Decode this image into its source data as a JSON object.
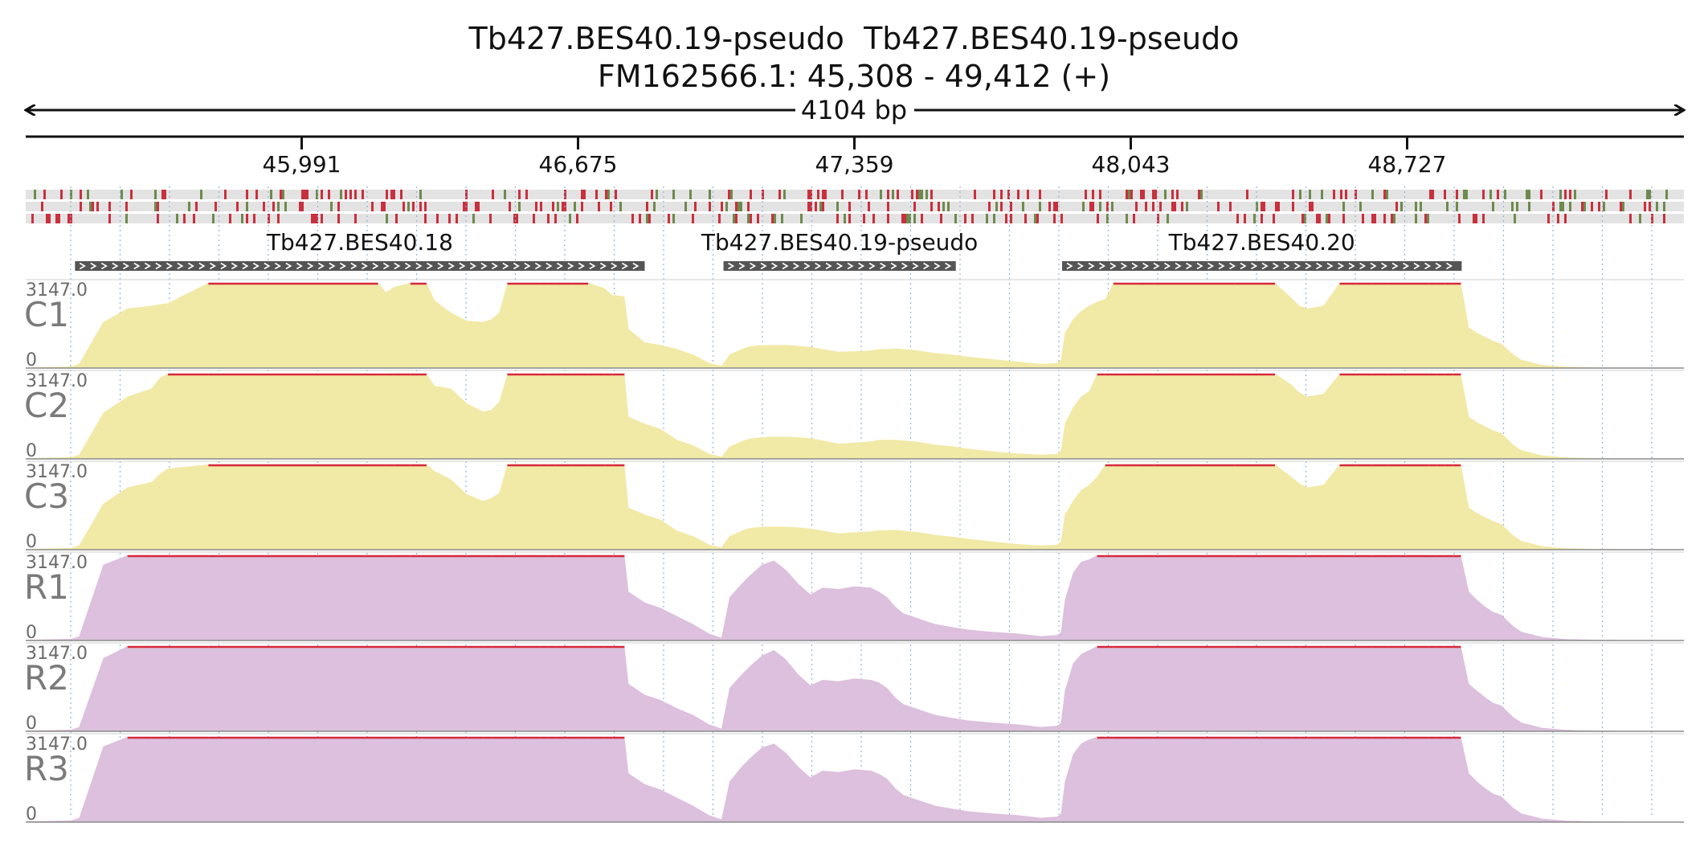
{
  "header": {
    "title_line1": "Tb427.BES40.19-pseudo  Tb427.BES40.19-pseudo",
    "title_line2": "FM162566.1: 45,308 - 49,412 (+)",
    "span_label": "4104 bp"
  },
  "colors": {
    "control_fill": "#f1e9a6",
    "rnai_fill": "#dcc0dd",
    "clip_line": "#d8283a",
    "gene_bar": "#555555",
    "grid_dots": "#8fb6db",
    "seq_red": "#c8303e",
    "seq_green": "#6e8a4e",
    "seq_bg": "#e3e3e3"
  },
  "chart_data": {
    "type": "area",
    "region": {
      "chrom": "FM162566.1",
      "start": 45308,
      "end": 49412,
      "strand": "+"
    },
    "ruler_ticks": [
      {
        "pos": 45991,
        "label": "45,991"
      },
      {
        "pos": 46675,
        "label": "46,675"
      },
      {
        "pos": 47359,
        "label": "47,359"
      },
      {
        "pos": 48043,
        "label": "48,043"
      },
      {
        "pos": 48727,
        "label": "48,727"
      }
    ],
    "genes": [
      {
        "name": "Tb427.BES40.18",
        "start": 45430,
        "end": 46840,
        "strand": "+"
      },
      {
        "name": "Tb427.BES40.19-pseudo",
        "start": 47035,
        "end": 47610,
        "strand": "+"
      },
      {
        "name": "Tb427.BES40.20",
        "start": 47873,
        "end": 48862,
        "strand": "+"
      }
    ],
    "y_range": [
      0,
      3147.0
    ],
    "y_max_label": "3147.0",
    "y_min_label": "0",
    "x": [
      45308,
      45420,
      45440,
      45500,
      45560,
      45620,
      45640,
      45660,
      45760,
      46160,
      46180,
      46200,
      46220,
      46260,
      46300,
      46320,
      46360,
      46400,
      46440,
      46460,
      46480,
      46500,
      46580,
      46600,
      46620,
      46660,
      46700,
      46740,
      46760,
      46790,
      46800,
      46840,
      46880,
      46920,
      46960,
      47000,
      47020,
      47030,
      47050,
      47080,
      47100,
      47130,
      47160,
      47190,
      47220,
      47250,
      47280,
      47320,
      47360,
      47400,
      47420,
      47440,
      47460,
      47480,
      47520,
      47560,
      47600,
      47640,
      47700,
      47760,
      47820,
      47860,
      47870,
      47880,
      47900,
      47920,
      47940,
      47960,
      47980,
      48000,
      48020,
      48040,
      48060,
      48100,
      48200,
      48300,
      48400,
      48440,
      48460,
      48480,
      48520,
      48560,
      48600,
      48640,
      48680,
      48720,
      48780,
      48800,
      48820,
      48840,
      48860,
      48880,
      48900,
      48920,
      48940,
      48960,
      48990,
      49010,
      49060,
      49120,
      49200,
      49300,
      49412
    ],
    "series": [
      {
        "name": "C1",
        "group": "control",
        "values": [
          20,
          60,
          150,
          1700,
          2200,
          2300,
          2350,
          2400,
          3147,
          3147,
          3147,
          2800,
          3000,
          3147,
          3147,
          2500,
          2050,
          1750,
          1700,
          1800,
          2050,
          3147,
          3147,
          3147,
          3147,
          3147,
          3147,
          2950,
          2700,
          2650,
          1450,
          950,
          850,
          700,
          500,
          180,
          120,
          80,
          500,
          700,
          800,
          850,
          850,
          850,
          820,
          780,
          700,
          600,
          620,
          650,
          700,
          700,
          720,
          700,
          640,
          550,
          500,
          420,
          330,
          240,
          150,
          180,
          300,
          1300,
          1800,
          2100,
          2300,
          2450,
          2550,
          3147,
          3147,
          3147,
          3147,
          3147,
          3147,
          3147,
          3147,
          2600,
          2300,
          2200,
          2300,
          3147,
          3147,
          3147,
          3147,
          3147,
          3147,
          3147,
          3147,
          3147,
          3147,
          1500,
          1300,
          1150,
          1000,
          900,
          500,
          300,
          120,
          50,
          20,
          10,
          8
        ]
      },
      {
        "name": "C2",
        "group": "control",
        "values": [
          20,
          60,
          150,
          1700,
          2300,
          2600,
          3000,
          3147,
          3147,
          3147,
          3147,
          3147,
          3147,
          3147,
          3147,
          2700,
          2600,
          2050,
          1750,
          1800,
          2100,
          3147,
          3147,
          3147,
          3147,
          3147,
          3147,
          3147,
          3147,
          3147,
          1550,
          1300,
          1100,
          700,
          500,
          180,
          120,
          80,
          450,
          650,
          750,
          800,
          820,
          820,
          800,
          760,
          680,
          560,
          600,
          640,
          700,
          710,
          700,
          680,
          620,
          520,
          470,
          380,
          280,
          200,
          150,
          180,
          300,
          1300,
          1900,
          2300,
          2500,
          3147,
          3147,
          3147,
          3147,
          3147,
          3147,
          3147,
          3147,
          3147,
          3147,
          2750,
          2450,
          2300,
          2400,
          3147,
          3147,
          3147,
          3147,
          3147,
          3147,
          3147,
          3147,
          3147,
          3147,
          1550,
          1350,
          1200,
          1050,
          950,
          520,
          320,
          130,
          50,
          20,
          10,
          8
        ]
      },
      {
        "name": "C3",
        "group": "control",
        "values": [
          20,
          60,
          150,
          1700,
          2300,
          2500,
          2800,
          3000,
          3147,
          3147,
          3147,
          3147,
          3147,
          3147,
          3147,
          2900,
          2600,
          2050,
          1800,
          1900,
          2100,
          3147,
          3147,
          3147,
          3147,
          3147,
          3147,
          3147,
          3147,
          3147,
          1550,
          1300,
          1100,
          700,
          500,
          180,
          120,
          80,
          500,
          700,
          800,
          850,
          850,
          850,
          820,
          780,
          700,
          600,
          640,
          670,
          720,
          720,
          730,
          700,
          640,
          540,
          480,
          400,
          300,
          210,
          150,
          180,
          300,
          1300,
          1800,
          2200,
          2400,
          2700,
          3147,
          3147,
          3147,
          3147,
          3147,
          3147,
          3147,
          3147,
          3147,
          2700,
          2450,
          2300,
          2400,
          3147,
          3147,
          3147,
          3147,
          3147,
          3147,
          3147,
          3147,
          3147,
          3147,
          1550,
          1350,
          1200,
          1050,
          950,
          520,
          320,
          130,
          50,
          20,
          10,
          8
        ]
      },
      {
        "name": "R1",
        "group": "rnai",
        "values": [
          20,
          60,
          150,
          2800,
          3147,
          3147,
          3147,
          3147,
          3147,
          3147,
          3147,
          3147,
          3147,
          3147,
          3147,
          3147,
          3147,
          3147,
          3147,
          3147,
          3147,
          3147,
          3147,
          3147,
          3147,
          3147,
          3147,
          3147,
          3147,
          3147,
          1800,
          1400,
          1200,
          900,
          600,
          250,
          150,
          100,
          1600,
          2100,
          2400,
          2800,
          2950,
          2600,
          2100,
          1700,
          1950,
          1900,
          2000,
          1950,
          1800,
          1600,
          1250,
          1000,
          800,
          600,
          500,
          400,
          320,
          260,
          160,
          200,
          300,
          1500,
          2500,
          2900,
          3000,
          3147,
          3147,
          3147,
          3147,
          3147,
          3147,
          3147,
          3147,
          3147,
          3147,
          3147,
          3147,
          3147,
          3147,
          3147,
          3147,
          3147,
          3147,
          3147,
          3147,
          3147,
          3147,
          3147,
          3147,
          1800,
          1500,
          1250,
          1050,
          950,
          520,
          320,
          130,
          50,
          20,
          10,
          8
        ]
      },
      {
        "name": "R2",
        "group": "rnai",
        "values": [
          20,
          60,
          150,
          2700,
          3147,
          3147,
          3147,
          3147,
          3147,
          3147,
          3147,
          3147,
          3147,
          3147,
          3147,
          3147,
          3147,
          3147,
          3147,
          3147,
          3147,
          3147,
          3147,
          3147,
          3147,
          3147,
          3147,
          3147,
          3147,
          3147,
          1750,
          1350,
          1150,
          850,
          600,
          250,
          150,
          100,
          1600,
          2100,
          2400,
          2800,
          3000,
          2650,
          2100,
          1700,
          1900,
          1850,
          1950,
          1900,
          1800,
          1600,
          1250,
          1000,
          800,
          600,
          500,
          400,
          320,
          260,
          160,
          200,
          300,
          1500,
          2500,
          2850,
          3000,
          3147,
          3147,
          3147,
          3147,
          3147,
          3147,
          3147,
          3147,
          3147,
          3147,
          3147,
          3147,
          3147,
          3147,
          3147,
          3147,
          3147,
          3147,
          3147,
          3147,
          3147,
          3147,
          3147,
          3147,
          1750,
          1500,
          1250,
          1050,
          950,
          520,
          320,
          130,
          50,
          20,
          10,
          8
        ]
      },
      {
        "name": "R3",
        "group": "rnai",
        "values": [
          20,
          60,
          150,
          2800,
          3147,
          3147,
          3147,
          3147,
          3147,
          3147,
          3147,
          3147,
          3147,
          3147,
          3147,
          3147,
          3147,
          3147,
          3147,
          3147,
          3147,
          3147,
          3147,
          3147,
          3147,
          3147,
          3147,
          3147,
          3147,
          3147,
          1800,
          1400,
          1200,
          900,
          600,
          250,
          150,
          100,
          1500,
          2050,
          2350,
          2750,
          2900,
          2550,
          2050,
          1650,
          1900,
          1850,
          1950,
          1900,
          1780,
          1600,
          1250,
          1000,
          800,
          600,
          500,
          400,
          320,
          260,
          160,
          200,
          300,
          1500,
          2500,
          2900,
          3050,
          3147,
          3147,
          3147,
          3147,
          3147,
          3147,
          3147,
          3147,
          3147,
          3147,
          3147,
          3147,
          3147,
          3147,
          3147,
          3147,
          3147,
          3147,
          3147,
          3147,
          3147,
          3147,
          3147,
          3147,
          1800,
          1500,
          1250,
          1050,
          950,
          520,
          320,
          130,
          50,
          20,
          10,
          8
        ]
      }
    ]
  }
}
